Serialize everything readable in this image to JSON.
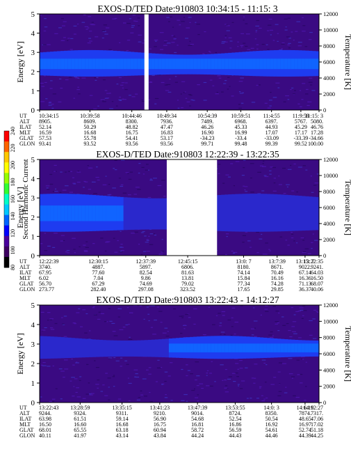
{
  "chart_data": [
    {
      "type": "heatmap",
      "title": "EXOS-D/TED   Date:910803  10:34:15 - 11:15: 3",
      "ylabel": "Energy [eV]",
      "y2label": "Temperature [K]",
      "ylim": [
        0,
        5
      ],
      "y2lim": [
        0,
        12000
      ],
      "yticks": [
        "0",
        "1",
        "2",
        "3",
        "4",
        "5"
      ],
      "y2ticks": [
        "0",
        "2000",
        "4000",
        "6000",
        "8000",
        "10000",
        "12000"
      ],
      "band": {
        "center_ev": 2.4,
        "halfwidth_ev": 0.6
      },
      "gaps": [
        {
          "start_frac": 0.375,
          "end_frac": 0.39
        }
      ],
      "table_labels": [
        "UT",
        "ALT",
        "ILAT",
        "MLT",
        "GLAT",
        "GLON"
      ],
      "table_columns": [
        [
          "10:34:15",
          "8905.",
          "52.14",
          "16.59",
          "57.53",
          "93.41"
        ],
        [
          "10:39:58",
          "8609.",
          "50.29",
          "16.68",
          "55.78",
          "93.52"
        ],
        [
          "10:44:46",
          "8300.",
          "48.82",
          "16.75",
          "54.41",
          "93.56"
        ],
        [
          "10:49:34",
          "7936.",
          "47.47",
          "16.83",
          "53.17",
          "93.56"
        ],
        [
          "10:54:39",
          "7489.",
          "46.26",
          "16.90",
          "-34.23",
          "99.71"
        ],
        [
          "10:59:51",
          "6968.",
          "45.33",
          "16.99",
          "-33.4",
          "99.48"
        ],
        [
          "11:4:55",
          "6397.",
          "44.93",
          "17.07",
          "-33.09",
          "99.39"
        ],
        [
          "11:9:59",
          "5767.",
          "45.29",
          "17.17",
          "-33.39",
          "99.52"
        ],
        [
          "11:15: 3",
          "5080.",
          "46.76",
          "17.28",
          "-34.66",
          "100.00"
        ]
      ]
    },
    {
      "type": "heatmap",
      "title": "EXOS-D/TED   Date:910803  12:22:39 - 13:22:35",
      "ylabel": "Energy [eV]",
      "y2label": "Temperature [K]",
      "ylim": [
        0,
        5
      ],
      "y2lim": [
        0,
        12000
      ],
      "yticks": [
        "0",
        "1",
        "2",
        "3",
        "4",
        "5"
      ],
      "y2ticks": [
        "0",
        "2000",
        "4000",
        "6000",
        "8000",
        "10000",
        "12000"
      ],
      "band": {
        "center_ev": 2.2,
        "halfwidth_ev": 0.9
      },
      "gaps": [
        {
          "start_frac": 0.455,
          "end_frac": 0.635
        }
      ],
      "table_labels": [
        "UT",
        "ALT",
        "ILAT",
        "MLT",
        "GLAT",
        "GLON"
      ],
      "table_columns": [
        [
          "12:22:39",
          "3740.",
          "67.95",
          "6.02",
          "56.70",
          "273.77"
        ],
        [
          "12:30:15",
          "4887.",
          "77.60",
          "7.04",
          "67.29",
          "282.40"
        ],
        [
          "12:37:39",
          "5897.",
          "82.54",
          "9.86",
          "74.69",
          "297.08"
        ],
        [
          "12:45:15",
          "6806.",
          "81.63",
          "13.81",
          "79.02",
          "323.52"
        ],
        [
          "13:0: 7",
          "8180.",
          "74.14",
          "15.84",
          "77.34",
          "17.65"
        ],
        [
          "13:7:39",
          "8671.",
          "70.49",
          "16.16",
          "74.28",
          "29.85"
        ],
        [
          "13:15: 7",
          "9022.",
          "67.14",
          "16.36",
          "71.13",
          "36.37"
        ],
        [
          "13:22:35",
          "9241.",
          "64.03",
          "16.50",
          "68.07",
          "40.06"
        ]
      ]
    },
    {
      "type": "heatmap",
      "title": "EXOS-D/TED   Date:910803  13:22:43 - 14:12:27",
      "ylabel": "Energy [eV]",
      "y2label": "Temperature [K]",
      "ylim": [
        0,
        5
      ],
      "y2lim": [
        0,
        12000
      ],
      "yticks": [
        "0",
        "1",
        "2",
        "3",
        "4",
        "5"
      ],
      "y2ticks": [
        "0",
        "2000",
        "4000",
        "6000",
        "8000",
        "10000",
        "12000"
      ],
      "band": {
        "center_ev": 2.8,
        "halfwidth_ev": 0.5
      },
      "gaps": [],
      "table_labels": [
        "UT",
        "ALT",
        "ILAT",
        "MLT",
        "GLAT",
        "GLON"
      ],
      "table_columns": [
        [
          "13:22:43",
          "9244.",
          "63.98",
          "16.50",
          "68.01",
          "40.11"
        ],
        [
          "13:28:59",
          "9324.",
          "61.51",
          "16.60",
          "65.55",
          "41.97"
        ],
        [
          "13:35:15",
          "9311.",
          "59.14",
          "16.68",
          "63.18",
          "43.14"
        ],
        [
          "13:41:23",
          "9210.",
          "56.90",
          "16.75",
          "60.94",
          "43.84"
        ],
        [
          "13:47:39",
          "9014.",
          "54.68",
          "16.81",
          "58.72",
          "44.24"
        ],
        [
          "13:53:55",
          "8724.",
          "52.54",
          "16.86",
          "56.59",
          "44.43"
        ],
        [
          "14:0: 3",
          "8350.",
          "50.54",
          "16.92",
          "54.61",
          "44.46"
        ],
        [
          "14:6:19",
          "7874.",
          "48.65",
          "16.97",
          "52.74",
          "44.39"
        ],
        [
          "14:12:27",
          "7317.",
          "47.06",
          "17.02",
          "51.18",
          "44.25"
        ]
      ]
    }
  ],
  "colorbar": {
    "label": "Second Harmonic Current",
    "ticks": [
      "80",
      "100",
      "120",
      "140",
      "160",
      "180",
      "200",
      "220",
      "240"
    ],
    "colors": [
      "#000000",
      "#3d0060",
      "#4a009c",
      "#0000ff",
      "#0064ff",
      "#00c8ff",
      "#00ffc8",
      "#32ff32",
      "#96ff00",
      "#ffff00",
      "#ffc800",
      "#ff6400",
      "#ff0000"
    ]
  }
}
